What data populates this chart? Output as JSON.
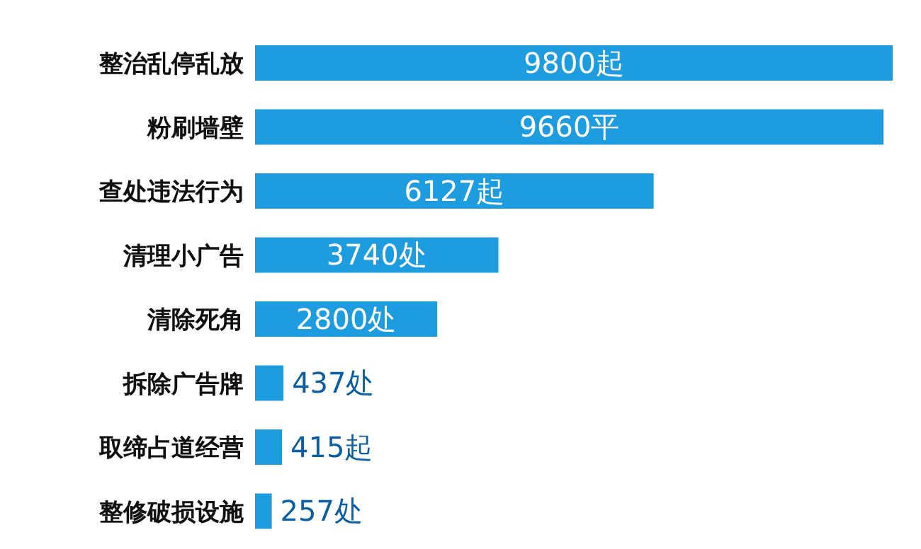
{
  "chart_data": {
    "type": "bar",
    "orientation": "horizontal",
    "tick_labels": "y",
    "grid": false,
    "legend": false,
    "categories": [
      "整治乱停乱放",
      "粉刷墙壁",
      "查处违法行为",
      "清理小广告",
      "清除死角",
      "拆除广告牌",
      "取缔占道经营",
      "整修破损设施"
    ],
    "values": [
      9800,
      9660,
      6127,
      3740,
      2800,
      437,
      415,
      257
    ],
    "value_labels": [
      "9800起",
      "9660平",
      "6127起",
      "3740处",
      "2800处",
      "437处",
      "415起",
      "257处"
    ],
    "color": "#1d9de0"
  }
}
